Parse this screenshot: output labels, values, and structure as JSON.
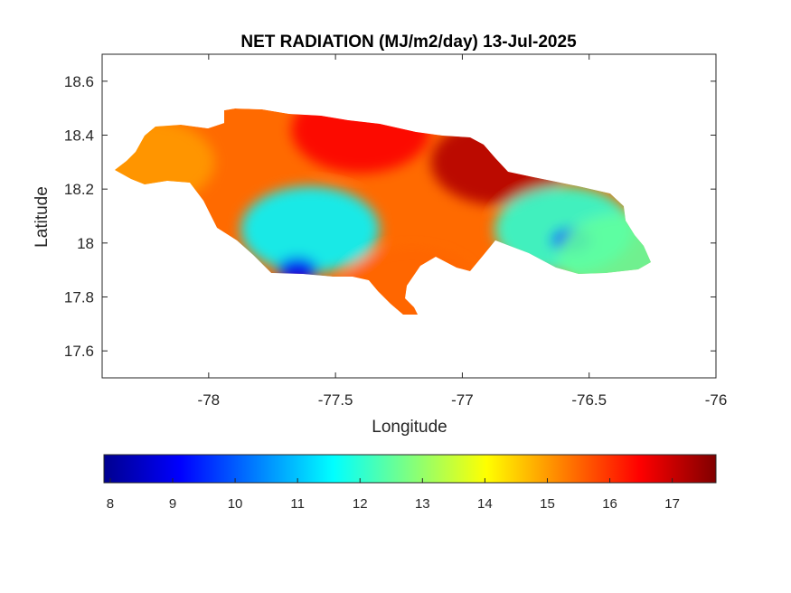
{
  "title": "NET RADIATION (MJ/m2/day) 13-Jul-2025",
  "xlabel": "Longitude",
  "ylabel": "Latitude",
  "x_ticks": [
    "-78",
    "-77.5",
    "-77",
    "-76.5",
    "-76"
  ],
  "y_ticks": [
    "18.6",
    "18.4",
    "18.2",
    "18",
    "17.8",
    "17.6"
  ],
  "colorbar": {
    "ticks": [
      "8",
      "9",
      "10",
      "11",
      "12",
      "13",
      "14",
      "15",
      "16",
      "17"
    ],
    "min": 7.9,
    "max": 17.7,
    "colormap": "jet"
  },
  "chart_data": {
    "type": "heatmap",
    "title": "NET RADIATION (MJ/m2/day) 13-Jul-2025",
    "xlabel": "Longitude",
    "ylabel": "Latitude",
    "xlim": [
      -78.42,
      -76
    ],
    "ylim": [
      17.5,
      18.7
    ],
    "region": "Jamaica",
    "units": "MJ/m2/day",
    "value_range": [
      7.9,
      17.7
    ],
    "colormap": "jet",
    "colorbar_position": "bottom",
    "grid": false,
    "regional_pattern": [
      {
        "area": "west-central interior",
        "lon": -77.6,
        "lat": 18.05,
        "approx_value": 11.5
      },
      {
        "area": "south-west interior minimum",
        "lon": -77.65,
        "lat": 17.9,
        "approx_value": 9.0
      },
      {
        "area": "north coast",
        "lon": -77.4,
        "lat": 18.42,
        "approx_value": 16.5
      },
      {
        "area": "north-east",
        "lon": -76.85,
        "lat": 18.3,
        "approx_value": 17.2
      },
      {
        "area": "western tip",
        "lon": -78.25,
        "lat": 18.3,
        "approx_value": 15.0
      },
      {
        "area": "south coast",
        "lon": -77.2,
        "lat": 17.82,
        "approx_value": 15.5
      },
      {
        "area": "east interior",
        "lon": -76.6,
        "lat": 18.05,
        "approx_value": 12.0
      },
      {
        "area": "east interior minimum",
        "lon": -76.57,
        "lat": 18.01,
        "approx_value": 9.5
      },
      {
        "area": "eastern tip",
        "lon": -76.35,
        "lat": 17.95,
        "approx_value": 12.5
      }
    ]
  }
}
